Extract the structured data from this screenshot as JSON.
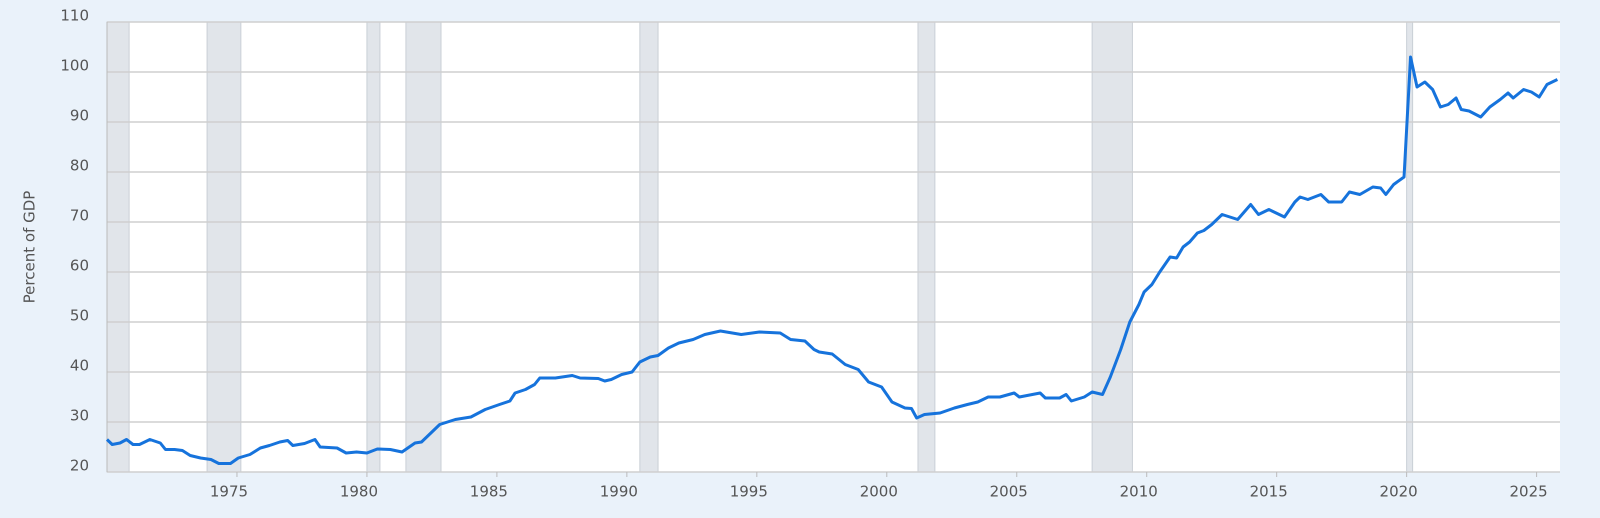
{
  "chart_data": {
    "type": "line",
    "y_label": "Percent of GDP",
    "color": "#1673dc",
    "grid": true,
    "xlim": [
      1970,
      2025.9
    ],
    "ylim": [
      20,
      110
    ],
    "xticks": [
      1975,
      1980,
      1985,
      1990,
      1995,
      2000,
      2005,
      2010,
      2015,
      2020,
      2025
    ],
    "yticks": [
      20,
      30,
      40,
      50,
      60,
      70,
      80,
      90,
      100,
      110
    ],
    "recessions": [
      {
        "start": 1970.0,
        "end": 1970.85
      },
      {
        "start": 1973.85,
        "end": 1975.15
      },
      {
        "start": 1980.0,
        "end": 1980.5
      },
      {
        "start": 1981.5,
        "end": 1982.85
      },
      {
        "start": 1990.5,
        "end": 1991.2
      },
      {
        "start": 2001.2,
        "end": 2001.85
      },
      {
        "start": 2007.9,
        "end": 2009.45
      },
      {
        "start": 2020.0,
        "end": 2020.23
      }
    ],
    "x": [
      1970.0,
      1970.2,
      1970.5,
      1970.75,
      1971.0,
      1971.25,
      1971.65,
      1972.05,
      1972.25,
      1972.6,
      1972.9,
      1973.2,
      1973.6,
      1974.0,
      1974.3,
      1974.75,
      1975.05,
      1975.5,
      1975.9,
      1976.25,
      1976.65,
      1976.95,
      1977.15,
      1977.6,
      1978.0,
      1978.2,
      1978.85,
      1979.2,
      1979.6,
      1980.0,
      1980.4,
      1980.9,
      1981.35,
      1981.85,
      1982.1,
      1982.5,
      1982.8,
      1983.4,
      1984.0,
      1984.55,
      1985.1,
      1985.5,
      1985.7,
      1986.1,
      1986.45,
      1986.65,
      1987.25,
      1987.9,
      1988.2,
      1988.9,
      1989.15,
      1989.4,
      1989.8,
      1990.2,
      1990.5,
      1990.9,
      1991.2,
      1991.6,
      1992.0,
      1992.55,
      1993.0,
      1993.6,
      1994.4,
      1995.1,
      1995.9,
      1996.3,
      1996.85,
      1997.2,
      1997.4,
      1997.9,
      1998.4,
      1998.9,
      1999.3,
      1999.8,
      2000.2,
      2000.7,
      2000.95,
      2001.15,
      2001.45,
      2002.05,
      2002.6,
      2003.1,
      2003.5,
      2003.9,
      2004.35,
      2004.9,
      2005.1,
      2005.9,
      2006.1,
      2006.65,
      2006.9,
      2007.1,
      2007.6,
      2007.9,
      2008.3,
      2008.6,
      2009.0,
      2009.35,
      2009.55,
      2009.7,
      2009.9,
      2010.2,
      2010.5,
      2010.9,
      2011.15,
      2011.4,
      2011.65,
      2011.95,
      2012.2,
      2012.5,
      2012.9,
      2013.5,
      2014.0,
      2014.3,
      2014.7,
      2015.3,
      2015.7,
      2015.9,
      2016.2,
      2016.7,
      2017.0,
      2017.5,
      2017.8,
      2018.2,
      2018.7,
      2019.0,
      2019.2,
      2019.5,
      2019.9,
      2020.15,
      2020.4,
      2020.7,
      2021.0,
      2021.3,
      2021.6,
      2021.9,
      2022.1,
      2022.4,
      2022.85,
      2023.2,
      2023.6,
      2023.9,
      2024.1,
      2024.5,
      2024.8,
      2025.1,
      2025.4,
      2025.8
    ],
    "values": [
      26.5,
      25.5,
      25.8,
      26.5,
      25.5,
      25.5,
      26.5,
      25.8,
      24.5,
      24.5,
      24.3,
      23.3,
      22.8,
      22.5,
      21.7,
      21.7,
      22.8,
      23.5,
      24.8,
      25.3,
      26,
      26.3,
      25.3,
      25.7,
      26.5,
      25,
      24.8,
      23.8,
      24,
      23.8,
      24.6,
      24.5,
      24,
      25.8,
      26,
      28,
      29.5,
      30.5,
      31,
      32.5,
      33.5,
      34.2,
      35.8,
      36.5,
      37.5,
      38.8,
      38.8,
      39.3,
      38.8,
      38.7,
      38.2,
      38.5,
      39.5,
      40,
      42,
      43,
      43.3,
      44.8,
      45.8,
      46.5,
      47.5,
      48.2,
      47.5,
      48,
      47.8,
      46.5,
      46.2,
      44.5,
      44,
      43.6,
      41.5,
      40.5,
      38,
      37,
      34,
      32.8,
      32.7,
      30.8,
      31.5,
      31.8,
      32.8,
      33.5,
      34,
      35,
      35,
      35.8,
      35,
      35.8,
      34.8,
      34.8,
      35.5,
      34.2,
      35,
      36,
      35.5,
      39,
      44.5,
      50,
      52,
      53.5,
      56,
      57.5,
      60,
      63,
      62.8,
      65,
      66,
      67.8,
      68.3,
      69.5,
      71.5,
      70.5,
      73.5,
      71.5,
      72.5,
      71,
      74,
      75,
      74.5,
      75.5,
      74,
      74,
      76,
      75.5,
      77,
      76.8,
      75.5,
      77.5,
      79,
      103,
      97,
      98,
      96.5,
      93,
      93.5,
      94.8,
      92.5,
      92.2,
      91,
      93,
      94.5,
      95.8,
      94.8,
      96.5,
      96,
      95,
      97.5,
      98.5
    ]
  }
}
